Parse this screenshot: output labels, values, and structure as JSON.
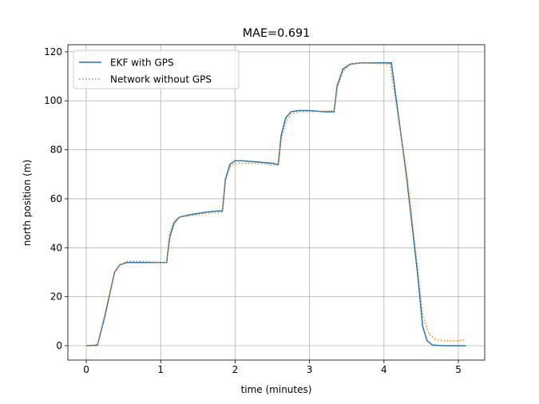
{
  "chart_data": {
    "type": "line",
    "title": "MAE=0.691",
    "x_label": "time (minutes)",
    "y_label": "north position (m)",
    "xlim": [
      -0.247,
      5.354
    ],
    "ylim": [
      -5.87,
      122.9
    ],
    "xticks": [
      0,
      1,
      2,
      3,
      4,
      5
    ],
    "yticks": [
      0,
      20,
      40,
      60,
      80,
      100,
      120
    ],
    "grid": true,
    "legend": "upper left",
    "series": [
      {
        "name": "EKF with GPS",
        "color": "#1f77b4",
        "style": "solid",
        "x": [
          0,
          0.15,
          0.25,
          0.38,
          0.45,
          0.55,
          0.7,
          1.0,
          1.08,
          1.12,
          1.18,
          1.25,
          1.4,
          1.6,
          1.75,
          1.83,
          1.87,
          1.93,
          2.0,
          2.1,
          2.3,
          2.5,
          2.58,
          2.62,
          2.68,
          2.75,
          2.85,
          3.0,
          3.2,
          3.33,
          3.37,
          3.45,
          3.55,
          3.7,
          4.0,
          4.1,
          4.3,
          4.45,
          4.52,
          4.58,
          4.65,
          4.8,
          5.0,
          5.1
        ],
        "values": [
          0,
          0.2,
          12,
          30,
          33,
          34,
          34,
          34,
          34,
          44,
          50,
          52.5,
          53.5,
          54.5,
          55,
          55,
          68,
          74,
          75.5,
          75.5,
          75,
          74.5,
          74,
          86,
          93,
          95.5,
          96,
          96,
          95.5,
          95.5,
          106,
          113,
          115,
          115.5,
          115.5,
          115.5,
          70,
          30,
          8,
          2,
          0.3,
          0,
          0,
          0
        ]
      },
      {
        "name": "Network without GPS",
        "color": "#ff7f0e",
        "style": "dotted",
        "x": [
          0,
          0.15,
          0.25,
          0.38,
          0.45,
          0.55,
          0.7,
          1.0,
          1.08,
          1.12,
          1.18,
          1.25,
          1.4,
          1.6,
          1.83,
          1.87,
          1.93,
          2.0,
          2.3,
          2.58,
          2.62,
          2.68,
          2.75,
          2.85,
          3.0,
          3.33,
          3.37,
          3.45,
          3.55,
          3.7,
          4.08,
          4.3,
          4.45,
          4.52,
          4.6,
          4.7,
          4.8,
          5.0,
          5.1
        ],
        "values": [
          0,
          0.5,
          13,
          30,
          33,
          34.5,
          34.5,
          34,
          34,
          46,
          51,
          52.5,
          53,
          54,
          54.5,
          67,
          73,
          74.5,
          74.5,
          73.5,
          84,
          91,
          94.5,
          95.5,
          95.5,
          96,
          105,
          112,
          115,
          115.5,
          115,
          72,
          33,
          13,
          5,
          2.5,
          2,
          2,
          2.5
        ]
      }
    ]
  }
}
